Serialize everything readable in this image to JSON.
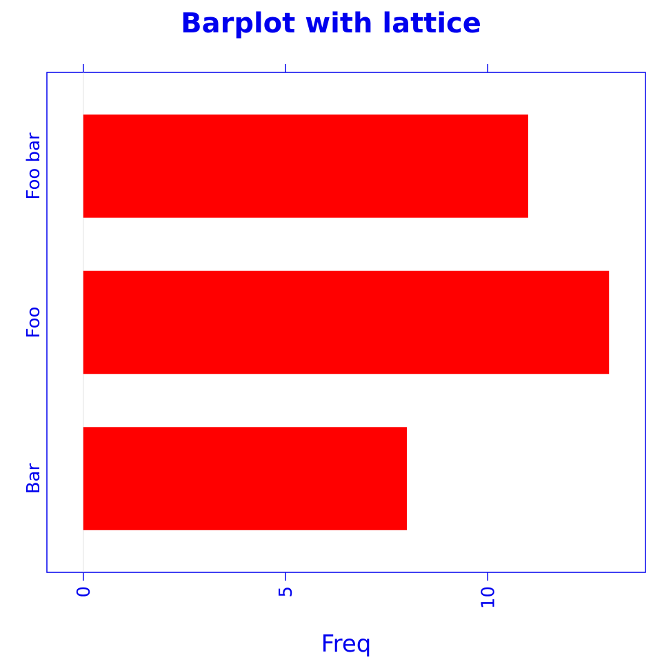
{
  "chart_data": {
    "type": "bar",
    "orientation": "horizontal",
    "title": "Barplot with lattice",
    "xlabel": "Freq",
    "ylabel": "",
    "categories": [
      "Bar",
      "Foo",
      "Foo bar"
    ],
    "values": [
      8,
      13,
      11
    ],
    "xlim": [
      -0.9,
      13.9
    ],
    "x_ticks": [
      0,
      5,
      10
    ],
    "x_tick_labels": [
      "0",
      "5",
      "10"
    ],
    "grid": false,
    "reference_line_at": 0,
    "colors": {
      "bar": "#ff0000",
      "axis": "#0000ee",
      "text": "#0000ee",
      "reference_line": "#e0e0e0"
    }
  }
}
